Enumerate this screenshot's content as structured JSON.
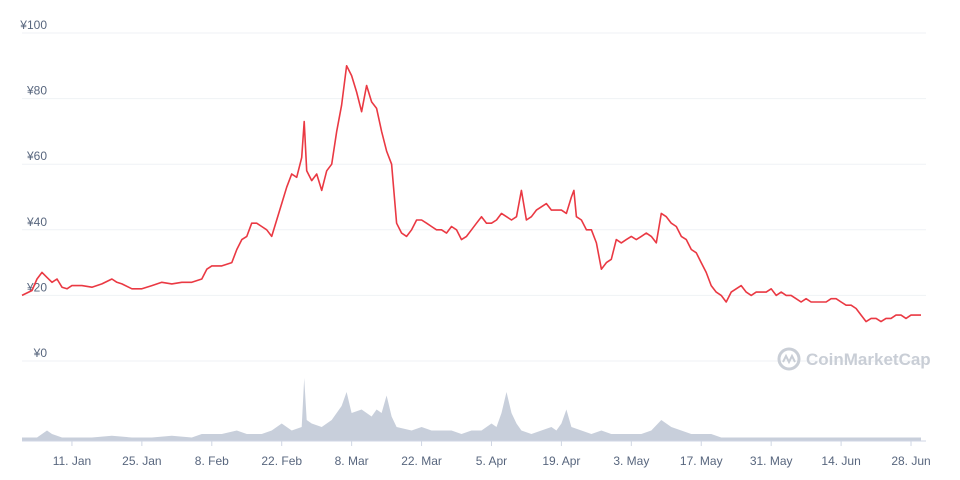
{
  "chart_data": {
    "type": "line",
    "y_axis": {
      "ticks": [
        0,
        20,
        40,
        60,
        80,
        100
      ],
      "tick_labels": [
        "¥0",
        "¥20",
        "¥40",
        "¥60",
        "¥80",
        "¥100"
      ],
      "ylim": [
        0,
        100
      ],
      "grid": true
    },
    "x_axis": {
      "tick_labels": [
        "11. Jan",
        "25. Jan",
        "8. Feb",
        "22. Feb",
        "8. Mar",
        "22. Mar",
        "5. Apr",
        "19. Apr",
        "3. May",
        "17. May",
        "31. May",
        "14. Jun",
        "28. Jun"
      ],
      "tick_positions": [
        10,
        24,
        38,
        52,
        66,
        80,
        94,
        108,
        122,
        136,
        150,
        164,
        178
      ],
      "xlim": [
        0,
        181
      ]
    },
    "series": [
      {
        "values": [
          [
            0,
            20
          ],
          [
            2,
            21.5
          ],
          [
            3,
            25
          ],
          [
            4,
            27
          ],
          [
            5,
            25.5
          ],
          [
            6,
            24
          ],
          [
            7,
            25
          ],
          [
            8,
            22.5
          ],
          [
            9,
            22
          ],
          [
            10,
            23
          ],
          [
            12,
            23
          ],
          [
            14,
            22.5
          ],
          [
            16,
            23.5
          ],
          [
            18,
            25
          ],
          [
            19,
            24
          ],
          [
            20,
            23.5
          ],
          [
            22,
            22
          ],
          [
            24,
            22
          ],
          [
            26,
            23
          ],
          [
            28,
            24
          ],
          [
            30,
            23.5
          ],
          [
            32,
            24
          ],
          [
            34,
            24
          ],
          [
            36,
            25
          ],
          [
            37,
            28
          ],
          [
            38,
            29
          ],
          [
            40,
            29
          ],
          [
            42,
            30
          ],
          [
            43,
            34
          ],
          [
            44,
            37
          ],
          [
            45,
            38
          ],
          [
            46,
            42
          ],
          [
            47,
            42
          ],
          [
            48,
            41
          ],
          [
            49,
            40
          ],
          [
            50,
            38
          ],
          [
            51,
            43
          ],
          [
            52,
            48
          ],
          [
            53,
            53
          ],
          [
            54,
            57
          ],
          [
            55,
            56
          ],
          [
            56,
            62
          ],
          [
            56.5,
            73
          ],
          [
            57,
            58
          ],
          [
            58,
            55
          ],
          [
            59,
            57
          ],
          [
            60,
            52
          ],
          [
            61,
            58
          ],
          [
            62,
            60
          ],
          [
            63,
            70
          ],
          [
            64,
            78
          ],
          [
            65,
            90
          ],
          [
            66,
            87
          ],
          [
            67,
            82
          ],
          [
            68,
            76
          ],
          [
            69,
            84
          ],
          [
            70,
            79
          ],
          [
            71,
            77
          ],
          [
            72,
            70
          ],
          [
            73,
            64
          ],
          [
            74,
            60
          ],
          [
            75,
            42
          ],
          [
            76,
            39
          ],
          [
            77,
            38
          ],
          [
            78,
            40
          ],
          [
            79,
            43
          ],
          [
            80,
            43
          ],
          [
            81,
            42
          ],
          [
            82,
            41
          ],
          [
            83,
            40
          ],
          [
            84,
            40
          ],
          [
            85,
            39
          ],
          [
            86,
            41
          ],
          [
            87,
            40
          ],
          [
            88,
            37
          ],
          [
            89,
            38
          ],
          [
            90,
            40
          ],
          [
            91,
            42
          ],
          [
            92,
            44
          ],
          [
            93,
            42
          ],
          [
            94,
            42
          ],
          [
            95,
            43
          ],
          [
            96,
            45
          ],
          [
            97,
            44
          ],
          [
            98,
            43
          ],
          [
            99,
            44
          ],
          [
            100,
            52
          ],
          [
            101,
            43
          ],
          [
            102,
            44
          ],
          [
            103,
            46
          ],
          [
            104,
            47
          ],
          [
            105,
            48
          ],
          [
            106,
            46
          ],
          [
            107,
            46
          ],
          [
            108,
            46
          ],
          [
            109,
            45
          ],
          [
            110,
            50
          ],
          [
            110.5,
            52
          ],
          [
            111,
            44
          ],
          [
            112,
            43
          ],
          [
            113,
            40
          ],
          [
            114,
            40
          ],
          [
            115,
            36
          ],
          [
            116,
            28
          ],
          [
            117,
            30
          ],
          [
            118,
            31
          ],
          [
            119,
            37
          ],
          [
            120,
            36
          ],
          [
            121,
            37
          ],
          [
            122,
            38
          ],
          [
            123,
            37
          ],
          [
            124,
            38
          ],
          [
            125,
            39
          ],
          [
            126,
            38
          ],
          [
            127,
            36
          ],
          [
            128,
            45
          ],
          [
            129,
            44
          ],
          [
            130,
            42
          ],
          [
            131,
            41
          ],
          [
            132,
            38
          ],
          [
            133,
            37
          ],
          [
            134,
            34
          ],
          [
            135,
            33
          ],
          [
            136,
            30
          ],
          [
            137,
            27
          ],
          [
            138,
            23
          ],
          [
            139,
            21
          ],
          [
            140,
            20
          ],
          [
            141,
            18
          ],
          [
            142,
            21
          ],
          [
            143,
            22
          ],
          [
            144,
            23
          ],
          [
            145,
            21
          ],
          [
            146,
            20
          ],
          [
            147,
            21
          ],
          [
            148,
            21
          ],
          [
            149,
            21
          ],
          [
            150,
            22
          ],
          [
            151,
            20
          ],
          [
            152,
            21
          ],
          [
            153,
            20
          ],
          [
            154,
            20
          ],
          [
            155,
            19
          ],
          [
            156,
            18
          ],
          [
            157,
            19
          ],
          [
            158,
            18
          ],
          [
            159,
            18
          ],
          [
            160,
            18
          ],
          [
            161,
            18
          ],
          [
            162,
            19
          ],
          [
            163,
            19
          ],
          [
            164,
            18
          ],
          [
            165,
            17
          ],
          [
            166,
            17
          ],
          [
            167,
            16
          ],
          [
            168,
            14
          ],
          [
            169,
            12
          ],
          [
            170,
            13
          ],
          [
            171,
            13
          ],
          [
            172,
            12
          ],
          [
            173,
            13
          ],
          [
            174,
            13
          ],
          [
            175,
            14
          ],
          [
            176,
            14
          ],
          [
            177,
            13
          ],
          [
            178,
            14
          ],
          [
            179,
            14
          ],
          [
            180,
            14
          ]
        ],
        "color": "#ea3943"
      }
    ],
    "volume": {
      "color": "#c8cfdb",
      "values": [
        [
          0,
          1
        ],
        [
          3,
          1
        ],
        [
          5,
          3
        ],
        [
          6,
          2
        ],
        [
          8,
          1
        ],
        [
          10,
          1
        ],
        [
          14,
          1
        ],
        [
          18,
          1.5
        ],
        [
          22,
          1
        ],
        [
          26,
          1
        ],
        [
          30,
          1.5
        ],
        [
          34,
          1
        ],
        [
          36,
          2
        ],
        [
          40,
          2
        ],
        [
          43,
          3
        ],
        [
          45,
          2
        ],
        [
          48,
          2
        ],
        [
          50,
          3
        ],
        [
          52,
          5
        ],
        [
          54,
          3
        ],
        [
          56,
          4
        ],
        [
          56.5,
          18
        ],
        [
          57,
          6
        ],
        [
          58,
          5
        ],
        [
          60,
          4
        ],
        [
          62,
          6
        ],
        [
          64,
          10
        ],
        [
          65,
          14
        ],
        [
          66,
          8
        ],
        [
          68,
          9
        ],
        [
          70,
          7
        ],
        [
          71,
          9
        ],
        [
          72,
          8
        ],
        [
          73,
          13
        ],
        [
          74,
          7
        ],
        [
          75,
          4
        ],
        [
          78,
          3
        ],
        [
          80,
          4
        ],
        [
          82,
          3
        ],
        [
          84,
          3
        ],
        [
          86,
          3
        ],
        [
          88,
          2
        ],
        [
          90,
          3
        ],
        [
          92,
          3
        ],
        [
          94,
          5
        ],
        [
          95,
          4
        ],
        [
          96,
          8
        ],
        [
          97,
          14
        ],
        [
          98,
          8
        ],
        [
          99,
          5
        ],
        [
          100,
          3
        ],
        [
          102,
          2
        ],
        [
          104,
          3
        ],
        [
          106,
          4
        ],
        [
          107,
          3
        ],
        [
          108,
          5
        ],
        [
          109,
          9
        ],
        [
          110,
          4
        ],
        [
          112,
          3
        ],
        [
          114,
          2
        ],
        [
          116,
          3
        ],
        [
          118,
          2
        ],
        [
          120,
          2
        ],
        [
          122,
          2
        ],
        [
          124,
          2
        ],
        [
          126,
          3
        ],
        [
          128,
          6
        ],
        [
          130,
          4
        ],
        [
          132,
          3
        ],
        [
          134,
          2
        ],
        [
          136,
          2
        ],
        [
          138,
          2
        ],
        [
          140,
          1
        ],
        [
          144,
          1
        ],
        [
          148,
          1
        ],
        [
          152,
          1
        ],
        [
          156,
          1
        ],
        [
          160,
          1
        ],
        [
          164,
          1
        ],
        [
          168,
          1
        ],
        [
          172,
          1
        ],
        [
          176,
          1
        ],
        [
          180,
          1
        ]
      ]
    }
  },
  "watermark": {
    "text": "CoinMarketCap"
  }
}
